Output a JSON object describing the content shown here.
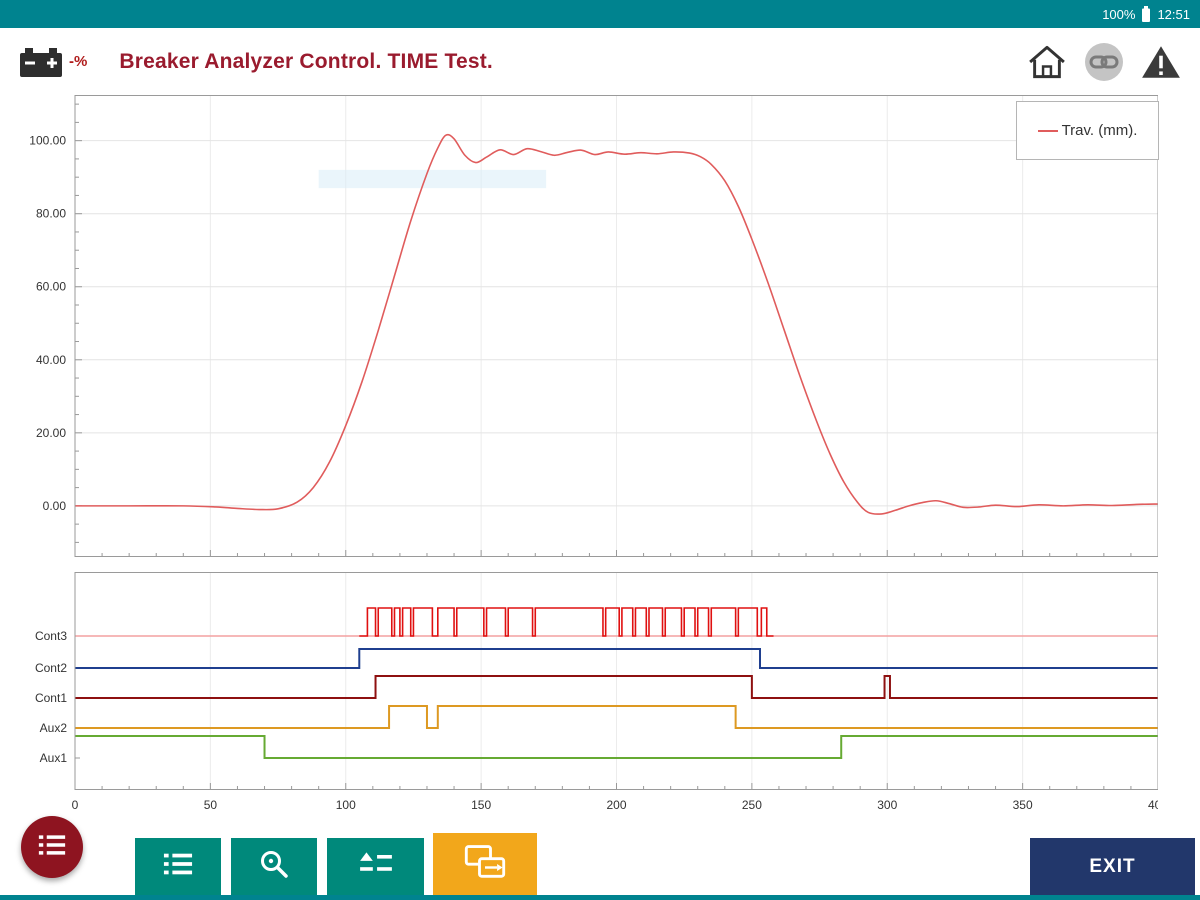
{
  "status_bar": {
    "battery_percent": "100%",
    "time": "12:51"
  },
  "header": {
    "title": "Breaker Analyzer Control. TIME Test.",
    "battery_value": "-%"
  },
  "toolbar": {
    "exit_label": "EXIT"
  },
  "colors": {
    "status_bar": "#00838f",
    "accent_red": "#9a1b2e",
    "teal_button": "#00897b",
    "orange_button": "#f2a71b",
    "fab_red": "#8e1420",
    "exit_navy": "#22376b"
  },
  "chart_data": [
    {
      "name": "travel",
      "type": "line",
      "legend": {
        "label": "Trav. (mm).",
        "color": "#e05c5c"
      },
      "xlim": [
        0,
        400
      ],
      "ylim": [
        -14,
        112.5
      ],
      "yticks": [
        0,
        20,
        40,
        60,
        80,
        100
      ],
      "ytick_labels": [
        "0.00",
        "20.00",
        "40.00",
        "60.00",
        "80.00",
        "100.00"
      ],
      "xgrid_step": 50,
      "grid": true,
      "ghost_highlight": {
        "x0": 90,
        "x1": 174,
        "y0": 87,
        "y1": 92,
        "color": "#d8ecf8"
      },
      "series": [
        {
          "name": "Trav. (mm).",
          "color": "#e05c5c",
          "points": [
            [
              0,
              0
            ],
            [
              20,
              0
            ],
            [
              40,
              0
            ],
            [
              52,
              -0.3
            ],
            [
              60,
              -0.7
            ],
            [
              68,
              -1
            ],
            [
              75,
              -0.8
            ],
            [
              82,
              1
            ],
            [
              88,
              5
            ],
            [
              94,
              12
            ],
            [
              100,
              22
            ],
            [
              106,
              34
            ],
            [
              112,
              48
            ],
            [
              118,
              63
            ],
            [
              124,
              78
            ],
            [
              130,
              91
            ],
            [
              134,
              98
            ],
            [
              137,
              101.5
            ],
            [
              140,
              100.5
            ],
            [
              144,
              96
            ],
            [
              148,
              94
            ],
            [
              152,
              95.5
            ],
            [
              157,
              97.5
            ],
            [
              162,
              96.2
            ],
            [
              167,
              97.8
            ],
            [
              172,
              97
            ],
            [
              177,
              96
            ],
            [
              182,
              96.8
            ],
            [
              187,
              97.4
            ],
            [
              192,
              96.2
            ],
            [
              197,
              96.9
            ],
            [
              203,
              96.3
            ],
            [
              209,
              96.7
            ],
            [
              215,
              96.4
            ],
            [
              221,
              96.9
            ],
            [
              227,
              96.6
            ],
            [
              231,
              95.6
            ],
            [
              235,
              93.5
            ],
            [
              240,
              89
            ],
            [
              245,
              82
            ],
            [
              250,
              73
            ],
            [
              256,
              61
            ],
            [
              262,
              48
            ],
            [
              268,
              35
            ],
            [
              274,
              23
            ],
            [
              279,
              14
            ],
            [
              284,
              6.5
            ],
            [
              289,
              1
            ],
            [
              293,
              -1.8
            ],
            [
              298,
              -2.2
            ],
            [
              303,
              -1.2
            ],
            [
              308,
              0
            ],
            [
              313,
              0.9
            ],
            [
              318,
              1.4
            ],
            [
              323,
              0.6
            ],
            [
              328,
              -0.4
            ],
            [
              334,
              -0.3
            ],
            [
              340,
              0.2
            ],
            [
              348,
              -0.2
            ],
            [
              356,
              0.3
            ],
            [
              365,
              0
            ],
            [
              374,
              0.3
            ],
            [
              383,
              0.1
            ],
            [
              392,
              0.4
            ],
            [
              400,
              0.5
            ]
          ]
        }
      ]
    },
    {
      "name": "contacts",
      "type": "digital",
      "xlim": [
        0,
        400
      ],
      "xticks": [
        0,
        50,
        100,
        150,
        200,
        250,
        300,
        350,
        400
      ],
      "signals": [
        {
          "name": "Cont3",
          "color": "#e01010",
          "baseline_color": "#f4a0a0",
          "draw_range": [
            105,
            258
          ],
          "intervals": [
            [
              108,
              111
            ],
            [
              112,
              117
            ],
            [
              118,
              120
            ],
            [
              121,
              124
            ],
            [
              125,
              132
            ],
            [
              134,
              140
            ],
            [
              141,
              151
            ],
            [
              152,
              159
            ],
            [
              160,
              169
            ],
            [
              170,
              195
            ],
            [
              196,
              201
            ],
            [
              202,
              206
            ],
            [
              207,
              211
            ],
            [
              212,
              217
            ],
            [
              218,
              224
            ],
            [
              225,
              229
            ],
            [
              230,
              234
            ],
            [
              235,
              244
            ],
            [
              245,
              252
            ],
            [
              253.5,
              255.5
            ]
          ]
        },
        {
          "name": "Cont2",
          "color": "#1f3f8f",
          "intervals": [
            [
              105,
              253
            ]
          ]
        },
        {
          "name": "Cont1",
          "color": "#8e1010",
          "intervals": [
            [
              111,
              250
            ],
            [
              299,
              301
            ]
          ]
        },
        {
          "name": "Aux2",
          "color": "#dd9922",
          "intervals": [
            [
              116,
              130
            ],
            [
              134,
              244
            ]
          ]
        },
        {
          "name": "Aux1",
          "color": "#66aa33",
          "invert": true,
          "intervals": [
            [
              70,
              283
            ]
          ]
        }
      ]
    }
  ]
}
